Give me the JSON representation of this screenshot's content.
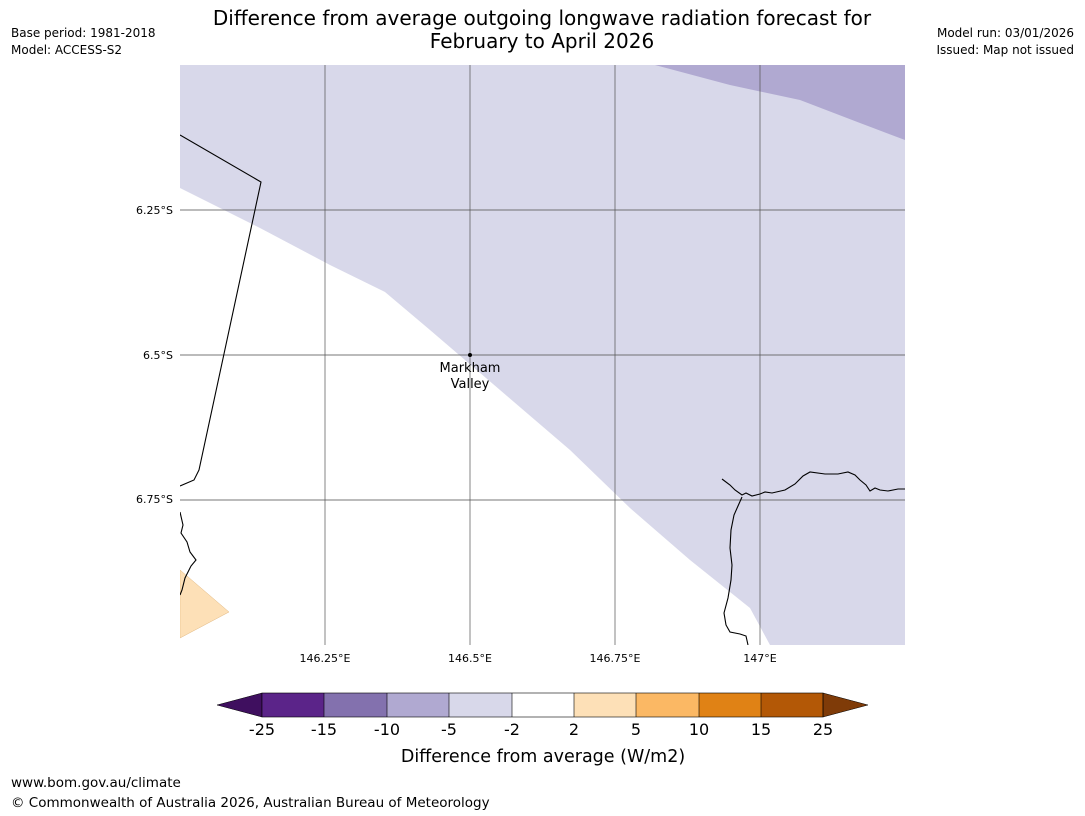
{
  "header": {
    "base_period": "Base period: 1981-2018",
    "model": "Model: ACCESS-S2",
    "model_run": "Model run: 03/01/2026",
    "issued": "Issued: Map not issued",
    "title_line1": "Difference from average outgoing longwave radiation forecast for",
    "title_line2": "February to April 2026"
  },
  "map": {
    "lat_labels": [
      "6.25°S",
      "6.5°S",
      "6.75°S"
    ],
    "lon_labels": [
      "146.25°E",
      "146.5°E",
      "146.75°E",
      "147°E"
    ],
    "place_line1": "Markham",
    "place_line2": "Valley"
  },
  "colorbar": {
    "ticks": [
      "-25",
      "-15",
      "-10",
      "-5",
      "-2",
      "2",
      "5",
      "10",
      "15",
      "25"
    ],
    "colors": [
      "#3f0f5f",
      "#5b2489",
      "#8371ae",
      "#b0a9d1",
      "#d8d8ea",
      "#ffffff",
      "#fde0b7",
      "#fbb864",
      "#e08215",
      "#b35806",
      "#7f3b08"
    ],
    "label": "Difference from average (W/m2)"
  },
  "footer": {
    "url": "www.bom.gov.au/climate",
    "copyright": "© Commonwealth of Australia 2026, Australian Bureau of Meteorology"
  }
}
